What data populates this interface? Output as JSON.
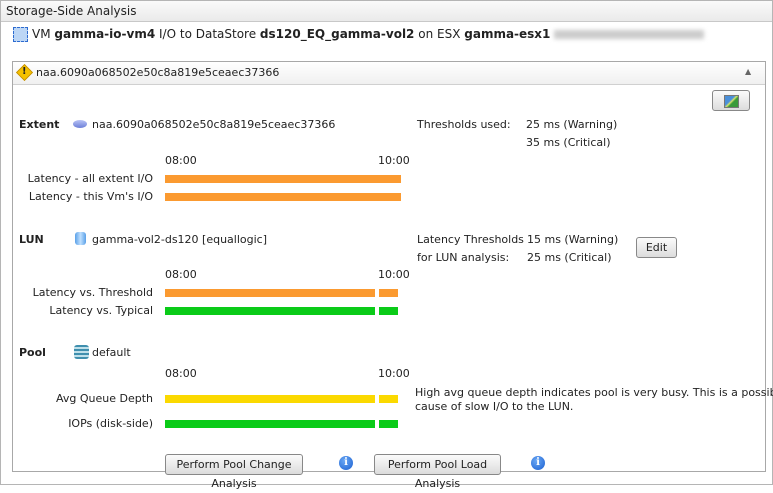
{
  "window": {
    "title": "Storage-Side Analysis"
  },
  "header": {
    "vm_prefix": "VM",
    "vm": "gamma-io-vm4",
    "mid1": "I/O to DataStore",
    "datastore": "ds120_EQ_gamma-vol2",
    "mid2": "on ESX",
    "esx": "gamma-esx1",
    "esx_suffix_redacted": true
  },
  "panel": {
    "title": "naa.6090a068502e50c8a819e5ceaec37366",
    "icon": "warning-icon",
    "chart_button_icon": "chart-icon"
  },
  "colors": {
    "orange": "#fb9a30",
    "green": "#0acb18",
    "yellow": "#fbd900"
  },
  "extent": {
    "label": "Extent",
    "name": "naa.6090a068502e50c8a819e5ceaec37366",
    "thresholds_label": "Thresholds used:",
    "warning": "25 ms (Warning)",
    "critical": "35 ms (Critical)",
    "time_start": "08:00",
    "time_end": "10:00",
    "rows": [
      {
        "label": "Latency - all extent I/O",
        "status": "orange"
      },
      {
        "label": "Latency - this Vm's I/O",
        "status": "orange"
      }
    ]
  },
  "lun": {
    "label": "LUN",
    "name": "gamma-vol2-ds120 [equallogic]",
    "thresholds_label1": "Latency Thresholds",
    "thresholds_label2": "for LUN analysis:",
    "warning": "15 ms (Warning)",
    "critical": "25 ms (Critical)",
    "edit": "Edit",
    "time_start": "08:00",
    "time_end": "10:00",
    "rows": [
      {
        "label": "Latency vs. Threshold",
        "status": "orange"
      },
      {
        "label": "Latency vs. Typical",
        "status": "green"
      }
    ]
  },
  "pool": {
    "label": "Pool",
    "name": "default",
    "time_start": "08:00",
    "time_end": "10:00",
    "note": "High avg queue depth indicates pool is very busy. This is a possible",
    "note2": "cause of slow I/O to the LUN.",
    "rows": [
      {
        "label": "Avg Queue Depth",
        "status": "yellow"
      },
      {
        "label": "IOPs (disk-side)",
        "status": "green"
      }
    ]
  },
  "buttons": {
    "change": "Perform Pool Change Analysis",
    "load": "Perform Pool Load Analysis"
  }
}
